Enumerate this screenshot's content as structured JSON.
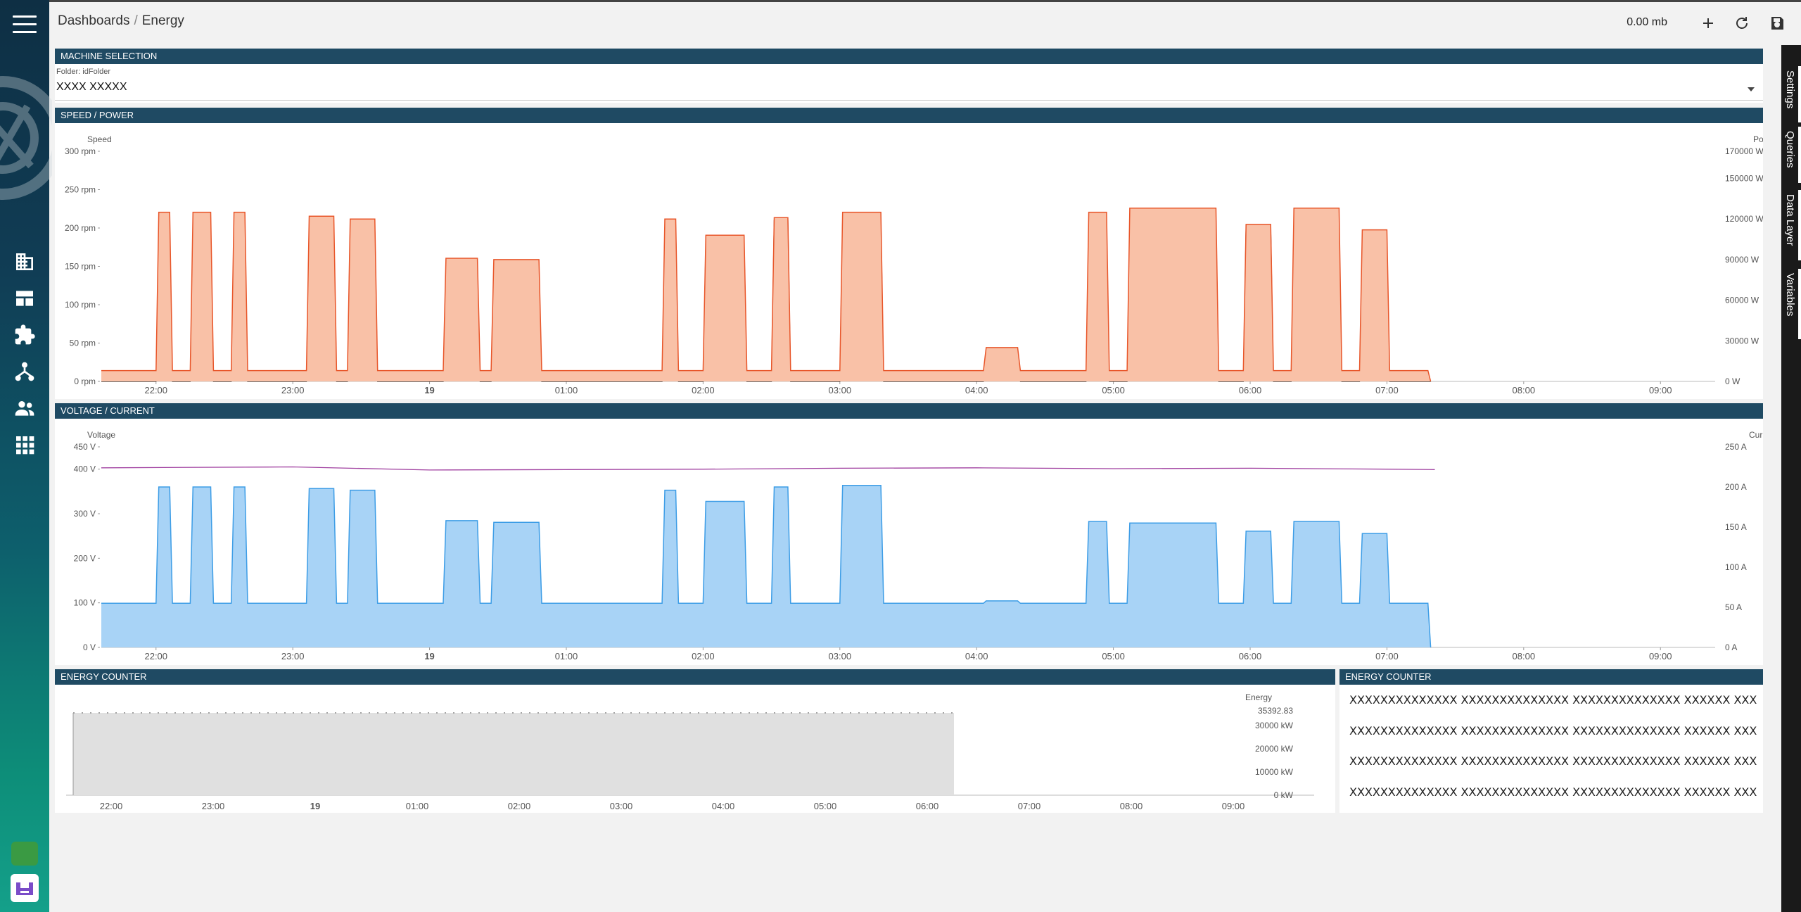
{
  "breadcrumb": {
    "parent": "Dashboards",
    "separator": "/",
    "current": "Energy"
  },
  "toolbar": {
    "size": "0.00 mb",
    "add_icon": "plus-icon",
    "refresh_icon": "refresh-icon",
    "save_icon": "save-icon"
  },
  "side_tabs": [
    "Settings",
    "Queries",
    "Data Layer",
    "Variables"
  ],
  "sidebar": {
    "icons": [
      "building-icon",
      "dashboard-icon",
      "puzzle-icon",
      "hierarchy-icon",
      "users-icon",
      "apps-icon"
    ]
  },
  "panels": {
    "machine": {
      "title": "MACHINE SELECTION",
      "label": "Folder: idFolder",
      "value": "XXXX XXXXX"
    },
    "speed": {
      "title": "SPEED / POWER"
    },
    "voltage": {
      "title": "VOLTAGE / CURRENT"
    },
    "energy": {
      "title": "ENERGY COUNTER"
    },
    "energy_text": {
      "title": "ENERGY COUNTER",
      "lines": [
        "XXXXXXXXXXXXXX XXXXXXXXXXXXXX XXXXXXXXXXXXXX XXXXXX XXXXXX",
        "XXXXXXXXXXXXXX XXXXXXXXXXXXXX XXXXXXXXXXXXXX XXXXXX XXXXXX",
        "XXXXXXXXXXXXXX XXXXXXXXXXXXXX XXXXXXXXXXXXXX XXXXXX XXXXXX",
        "XXXXXXXXXXXXXX XXXXXXXXXXXXXX XXXXXXXXXXXXXX XXXXXX XXXXXX"
      ]
    }
  },
  "colors": {
    "header": "#1f4a63",
    "power": "#e8562a",
    "power_fill": "#f9c1a7",
    "speed": "#111111",
    "current": "#3d9de6",
    "current_fill": "#a8d3f6",
    "voltage": "#a040a0",
    "energy_fill": "#e0e0e0"
  },
  "chart_data": [
    {
      "type": "area",
      "x_ticks": [
        "22:00",
        "23:00",
        "19",
        "01:00",
        "02:00",
        "03:00",
        "04:00",
        "05:00",
        "06:00",
        "07:00",
        "08:00",
        "09:00"
      ],
      "xlabel": "",
      "left_axis": {
        "label": "Speed",
        "ticks": [
          "0 rpm",
          "50 rpm",
          "100 rpm",
          "150 rpm",
          "200 rpm",
          "250 rpm",
          "300 rpm"
        ],
        "ylim": [
          0,
          300
        ]
      },
      "right_axis": {
        "label": "Power",
        "ticks": [
          "0 W",
          "30000 W",
          "60000 W",
          "90000 W",
          "120000 W",
          "150000 W",
          "170000 W"
        ],
        "ylim": [
          0,
          170000
        ]
      },
      "series": [
        {
          "axis": "left",
          "style": "line",
          "x": [
            21.6,
            22.0,
            22.02,
            22.1,
            22.12,
            22.25,
            22.27,
            22.4,
            22.42,
            22.55,
            22.57,
            22.65,
            22.67,
            23.1,
            23.12,
            23.3,
            23.32,
            23.4,
            23.42,
            23.6,
            23.62,
            24.1,
            24.12,
            24.35,
            24.37,
            24.45,
            24.47,
            24.8,
            24.82,
            25.7,
            25.72,
            25.8,
            25.82,
            26.0,
            26.02,
            26.3,
            26.32,
            26.5,
            26.52,
            26.62,
            26.64,
            27.0,
            27.02,
            27.3,
            27.32,
            28.05,
            28.07,
            28.3,
            28.32,
            28.8,
            28.82,
            28.95,
            28.97,
            29.1,
            29.12,
            29.75,
            29.77,
            29.95,
            29.97,
            30.15,
            30.17,
            30.3,
            30.32,
            30.65,
            30.67,
            30.8,
            30.82,
            31.0,
            31.02,
            31.3,
            31.32
          ],
          "values": [
            0,
            0,
            200,
            200,
            0,
            0,
            200,
            200,
            0,
            0,
            200,
            200,
            0,
            0,
            200,
            200,
            0,
            0,
            200,
            200,
            0,
            0,
            100,
            100,
            0,
            0,
            75,
            75,
            0,
            0,
            200,
            200,
            0,
            0,
            180,
            180,
            0,
            0,
            210,
            210,
            0,
            0,
            210,
            210,
            0,
            0,
            5,
            5,
            0,
            0,
            200,
            200,
            0,
            0,
            210,
            210,
            0,
            0,
            200,
            200,
            0,
            0,
            200,
            200,
            0,
            0,
            180,
            180,
            0,
            0,
            0
          ]
        },
        {
          "axis": "right",
          "style": "area",
          "x": [
            21.6,
            22.0,
            22.02,
            22.1,
            22.12,
            22.25,
            22.27,
            22.4,
            22.42,
            22.55,
            22.57,
            22.65,
            22.67,
            23.1,
            23.12,
            23.3,
            23.32,
            23.4,
            23.42,
            23.6,
            23.62,
            24.1,
            24.12,
            24.35,
            24.37,
            24.45,
            24.47,
            24.8,
            24.82,
            25.7,
            25.72,
            25.8,
            25.82,
            26.0,
            26.02,
            26.3,
            26.32,
            26.5,
            26.52,
            26.62,
            26.64,
            27.0,
            27.02,
            27.3,
            27.32,
            28.05,
            28.07,
            28.3,
            28.32,
            28.8,
            28.82,
            28.95,
            28.97,
            29.1,
            29.12,
            29.75,
            29.77,
            29.95,
            29.97,
            30.15,
            30.17,
            30.3,
            30.32,
            30.65,
            30.67,
            30.8,
            30.82,
            31.0,
            31.02,
            31.3,
            31.32
          ],
          "values": [
            8000,
            8000,
            125000,
            125000,
            8000,
            8000,
            125000,
            125000,
            8000,
            8000,
            125000,
            125000,
            8000,
            8000,
            122000,
            122000,
            8000,
            8000,
            120000,
            120000,
            8000,
            8000,
            91000,
            91000,
            8000,
            8000,
            90000,
            90000,
            8000,
            8000,
            120000,
            120000,
            8000,
            8000,
            108000,
            108000,
            8000,
            8000,
            121000,
            121000,
            8000,
            8000,
            125000,
            125000,
            8000,
            8000,
            25000,
            25000,
            8000,
            8000,
            125000,
            125000,
            8000,
            8000,
            128000,
            128000,
            8000,
            8000,
            116000,
            116000,
            8000,
            8000,
            128000,
            128000,
            8000,
            8000,
            112000,
            112000,
            8000,
            8000,
            0
          ]
        }
      ]
    },
    {
      "type": "area",
      "x_ticks": [
        "22:00",
        "23:00",
        "19",
        "01:00",
        "02:00",
        "03:00",
        "04:00",
        "05:00",
        "06:00",
        "07:00",
        "08:00",
        "09:00"
      ],
      "left_axis": {
        "label": "Voltage",
        "ticks": [
          "0 V",
          "100 V",
          "200 V",
          "300 V",
          "400 V",
          "450 V"
        ],
        "ylim": [
          0,
          450
        ]
      },
      "right_axis": {
        "label": "Current",
        "ticks": [
          "0 A",
          "50 A",
          "100 A",
          "150 A",
          "200 A",
          "250 A"
        ],
        "ylim": [
          0,
          250
        ]
      },
      "series": [
        {
          "axis": "left",
          "style": "line",
          "x": [
            21.6,
            23.0,
            24.0,
            26.0,
            27.0,
            28.0,
            29.0,
            30.0,
            31.0,
            31.35
          ],
          "values": [
            403,
            405,
            398,
            400,
            402,
            403,
            401,
            402,
            400,
            399
          ]
        },
        {
          "axis": "right",
          "style": "area",
          "x": [
            21.6,
            22.0,
            22.02,
            22.1,
            22.12,
            22.25,
            22.27,
            22.4,
            22.42,
            22.55,
            22.57,
            22.65,
            22.67,
            23.1,
            23.12,
            23.3,
            23.32,
            23.4,
            23.42,
            23.6,
            23.62,
            24.1,
            24.12,
            24.35,
            24.37,
            24.45,
            24.47,
            24.8,
            24.82,
            25.7,
            25.72,
            25.8,
            25.82,
            26.0,
            26.02,
            26.3,
            26.32,
            26.5,
            26.52,
            26.62,
            26.64,
            27.0,
            27.02,
            27.3,
            27.32,
            28.05,
            28.07,
            28.3,
            28.32,
            28.8,
            28.82,
            28.95,
            28.97,
            29.1,
            29.12,
            29.75,
            29.77,
            29.95,
            29.97,
            30.15,
            30.17,
            30.3,
            30.32,
            30.65,
            30.67,
            30.8,
            30.82,
            31.0,
            31.02,
            31.3,
            31.32
          ],
          "values": [
            55,
            55,
            200,
            200,
            55,
            55,
            200,
            200,
            55,
            55,
            200,
            200,
            55,
            55,
            198,
            198,
            55,
            55,
            196,
            196,
            55,
            55,
            158,
            158,
            55,
            55,
            156,
            156,
            55,
            55,
            196,
            196,
            55,
            55,
            182,
            182,
            55,
            55,
            200,
            200,
            55,
            55,
            202,
            202,
            55,
            55,
            58,
            58,
            55,
            55,
            157,
            157,
            55,
            55,
            155,
            155,
            55,
            55,
            145,
            145,
            55,
            55,
            157,
            157,
            55,
            55,
            142,
            142,
            55,
            55,
            0
          ]
        }
      ]
    },
    {
      "type": "area",
      "x_ticks": [
        "22:00",
        "23:00",
        "19",
        "01:00",
        "02:00",
        "03:00",
        "04:00",
        "05:00",
        "06:00",
        "07:00",
        "08:00",
        "09:00"
      ],
      "right_axis": {
        "label": "Energy",
        "ticks": [
          "0 kW",
          "10000 kW",
          "20000 kW",
          "30000 kW"
        ],
        "ylim": [
          0,
          35392.83
        ]
      },
      "annotation": "35392.83",
      "series": [
        {
          "axis": "right",
          "style": "area",
          "x": [
            21.6,
            31.3
          ],
          "values": [
            35392.83,
            35392.83
          ]
        }
      ]
    }
  ]
}
